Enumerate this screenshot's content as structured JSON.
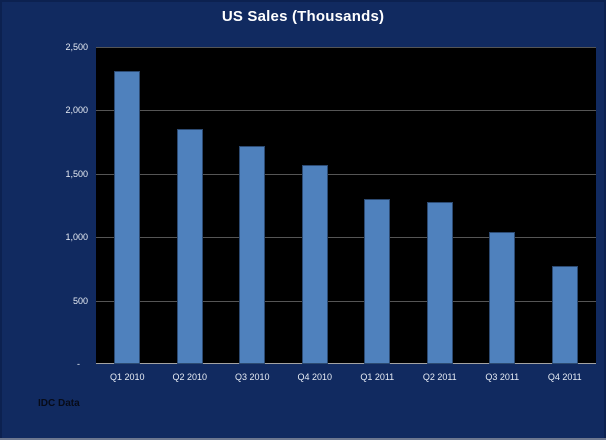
{
  "chart": {
    "title": "US Sales (Thousands)",
    "footnote": "IDC Data"
  },
  "chart_data": {
    "type": "bar",
    "title": "US Sales (Thousands)",
    "categories": [
      "Q1 2010",
      "Q2 2010",
      "Q3 2010",
      "Q4 2010",
      "Q1 2011",
      "Q2 2011",
      "Q3 2011",
      "Q4 2011"
    ],
    "values": [
      2310,
      1850,
      1720,
      1570,
      1300,
      1275,
      1040,
      770
    ],
    "xlabel": "",
    "ylabel": "",
    "ylim": [
      0,
      2500
    ],
    "yticks": [
      2500,
      2000,
      1500,
      1000,
      500,
      0
    ],
    "ytick_labels": [
      "2,500",
      "2,000",
      "1,500",
      "1,000",
      "500",
      "-"
    ],
    "grid": true,
    "legend": false,
    "annotations": [
      "IDC Data"
    ]
  },
  "colors": {
    "background": "#112a60",
    "plot_background": "#000000",
    "bar_fill": "#4f81bd",
    "bar_border": "#2c4a72",
    "gridline": "#555555",
    "axis_line": "#a3a3a3",
    "title_text": "#ffffff",
    "tick_text": "#e8edf5",
    "footnote_text": "#070b18"
  }
}
